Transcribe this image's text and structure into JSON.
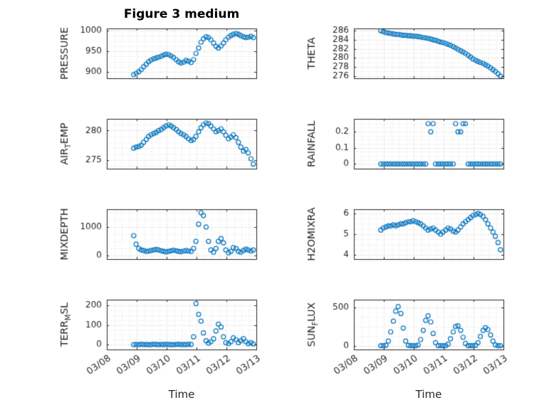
{
  "figure": {
    "title": "Figure 3 medium",
    "xlabel": "Time"
  },
  "colors": {
    "background": "#ffffff",
    "marker": "#0072BD",
    "axis": "#262626",
    "grid_major": "#c9c9c9",
    "grid_minor": "#e0e0e0"
  },
  "x_axis": {
    "label": "Time",
    "range": [
      0,
      5
    ],
    "ticks": [
      0,
      1,
      2,
      3,
      4,
      5
    ],
    "tick_labels": [
      "03/08",
      "03/09",
      "03/10",
      "03/11",
      "03/12",
      "03/13"
    ],
    "minor_step": 0.25
  },
  "time_days": [
    0.9,
    0.98,
    1.07,
    1.15,
    1.23,
    1.32,
    1.4,
    1.48,
    1.57,
    1.65,
    1.73,
    1.82,
    1.9,
    1.98,
    2.07,
    2.15,
    2.23,
    2.32,
    2.4,
    2.48,
    2.57,
    2.65,
    2.73,
    2.82,
    2.9,
    2.98,
    3.07,
    3.15,
    3.23,
    3.32,
    3.4,
    3.48,
    3.57,
    3.65,
    3.73,
    3.82,
    3.9,
    3.98,
    4.07,
    4.15,
    4.23,
    4.32,
    4.4,
    4.48,
    4.57,
    4.65,
    4.73,
    4.82,
    4.9
  ],
  "chart_data": [
    {
      "id": "pressure",
      "type": "scatter",
      "ylabel": [
        {
          "t": "PRESSURE"
        }
      ],
      "ylim": [
        885,
        1005
      ],
      "yticks": [
        900,
        950,
        1000
      ],
      "ytick_labels": [
        "900",
        "950",
        "1000"
      ],
      "y_minor_step": 12.5,
      "grid": true,
      "show_x_labels": false,
      "y": [
        894,
        897,
        901,
        906,
        913,
        919,
        925,
        929,
        932,
        934,
        936,
        938,
        941,
        943,
        942,
        939,
        935,
        930,
        925,
        922,
        924,
        928,
        926,
        923,
        930,
        945,
        958,
        972,
        980,
        985,
        983,
        978,
        970,
        962,
        958,
        963,
        970,
        978,
        984,
        988,
        991,
        993,
        991,
        988,
        985,
        983,
        984,
        986,
        983
      ]
    },
    {
      "id": "theta",
      "type": "scatter",
      "ylabel": [
        {
          "t": "THETA"
        }
      ],
      "ylim": [
        275.5,
        286.5
      ],
      "yticks": [
        276,
        278,
        280,
        282,
        284,
        286
      ],
      "ytick_labels": [
        "276",
        "278",
        "280",
        "282",
        "284",
        "286"
      ],
      "y_minor_step": 1,
      "grid": true,
      "show_x_labels": false,
      "y": [
        286.0,
        285.8,
        285.6,
        285.5,
        285.4,
        285.3,
        285.2,
        285.2,
        285.1,
        285.0,
        285.0,
        284.9,
        284.9,
        284.8,
        284.8,
        284.7,
        284.6,
        284.5,
        284.4,
        284.3,
        284.2,
        284.0,
        283.9,
        283.7,
        283.5,
        283.4,
        283.2,
        283.0,
        282.8,
        282.5,
        282.2,
        281.9,
        281.6,
        281.3,
        281.0,
        280.6,
        280.2,
        279.8,
        279.5,
        279.2,
        279.0,
        278.8,
        278.5,
        278.2,
        277.8,
        277.4,
        277.0,
        276.5,
        276.0
      ]
    },
    {
      "id": "airtemp",
      "type": "scatter",
      "ylabel": [
        {
          "t": "AIR"
        },
        {
          "t": "T",
          "sub": true
        },
        {
          "t": "EMP"
        }
      ],
      "ylim": [
        273.5,
        282.0
      ],
      "yticks": [
        275,
        280
      ],
      "ytick_labels": [
        "275",
        "280"
      ],
      "y_minor_step": 1,
      "grid": true,
      "show_x_labels": false,
      "y": [
        277.0,
        277.2,
        277.3,
        277.5,
        278.0,
        278.5,
        279.0,
        279.3,
        279.5,
        279.7,
        280.0,
        280.2,
        280.5,
        280.8,
        281.0,
        280.8,
        280.5,
        280.2,
        279.8,
        279.5,
        279.3,
        279.0,
        278.6,
        278.3,
        278.5,
        279.0,
        279.8,
        280.5,
        281.0,
        281.3,
        281.2,
        280.8,
        280.3,
        279.8,
        280.0,
        280.3,
        279.8,
        279.2,
        278.6,
        278.9,
        279.3,
        278.8,
        278.0,
        277.2,
        276.5,
        276.8,
        276.2,
        275.2,
        274.3
      ]
    },
    {
      "id": "rainfall",
      "type": "scatter",
      "ylabel": [
        {
          "t": "RAINFALL"
        }
      ],
      "ylim": [
        -0.03,
        0.28
      ],
      "yticks": [
        0,
        0.1,
        0.2
      ],
      "ytick_labels": [
        "0",
        "0.1",
        "0.2"
      ],
      "y_minor_step": 0.025,
      "grid": true,
      "show_x_labels": false,
      "y": [
        0,
        0,
        0,
        0,
        0,
        0,
        0,
        0,
        0,
        0,
        0,
        0,
        0,
        0,
        0,
        0,
        0,
        0,
        0,
        0.25,
        0.2,
        0.25,
        0,
        0,
        0,
        0,
        0,
        0,
        0,
        0,
        0.25,
        0.2,
        0.2,
        0.25,
        0.25,
        0,
        0,
        0,
        0,
        0,
        0,
        0,
        0,
        0,
        0,
        0,
        0,
        0,
        0
      ]
    },
    {
      "id": "mixdepth",
      "type": "scatter",
      "ylabel": [
        {
          "t": "MIXDEPTH"
        }
      ],
      "ylim": [
        -120,
        1620
      ],
      "yticks": [
        0,
        1000
      ],
      "ytick_labels": [
        "0",
        "1000"
      ],
      "y_minor_step": 250,
      "grid": true,
      "show_x_labels": false,
      "y": [
        700,
        400,
        250,
        200,
        180,
        150,
        160,
        180,
        200,
        220,
        200,
        170,
        150,
        130,
        150,
        170,
        190,
        170,
        150,
        140,
        160,
        180,
        160,
        150,
        250,
        500,
        1100,
        1500,
        1400,
        1000,
        500,
        200,
        120,
        250,
        500,
        600,
        450,
        200,
        100,
        150,
        280,
        250,
        150,
        120,
        180,
        230,
        200,
        160,
        200
      ]
    },
    {
      "id": "h2omixra",
      "type": "scatter",
      "ylabel": [
        {
          "t": "H2OMIXRA"
        }
      ],
      "ylim": [
        3.8,
        6.2
      ],
      "yticks": [
        4,
        5,
        6
      ],
      "ytick_labels": [
        "4",
        "5",
        "6"
      ],
      "y_minor_step": 0.25,
      "grid": true,
      "show_x_labels": false,
      "y": [
        5.2,
        5.3,
        5.35,
        5.4,
        5.4,
        5.45,
        5.4,
        5.45,
        5.5,
        5.5,
        5.55,
        5.6,
        5.6,
        5.65,
        5.6,
        5.55,
        5.5,
        5.4,
        5.3,
        5.2,
        5.25,
        5.3,
        5.2,
        5.1,
        5.0,
        5.1,
        5.2,
        5.3,
        5.25,
        5.15,
        5.1,
        5.2,
        5.35,
        5.5,
        5.6,
        5.7,
        5.8,
        5.9,
        5.95,
        6.0,
        5.95,
        5.85,
        5.7,
        5.5,
        5.3,
        5.1,
        4.9,
        4.6,
        4.25
      ]
    },
    {
      "id": "terrmsl",
      "type": "scatter",
      "ylabel": [
        {
          "t": "TERR"
        },
        {
          "t": "M",
          "sub": true
        },
        {
          "t": "SL"
        }
      ],
      "ylim": [
        -25,
        230
      ],
      "yticks": [
        0,
        100,
        200
      ],
      "ytick_labels": [
        "0",
        "100",
        "200"
      ],
      "y_minor_step": 25,
      "grid": true,
      "show_x_labels": true,
      "y": [
        0,
        1,
        0,
        2,
        0,
        1,
        0,
        0,
        2,
        1,
        0,
        1,
        0,
        2,
        1,
        0,
        0,
        1,
        2,
        0,
        1,
        0,
        2,
        1,
        40,
        210,
        155,
        120,
        60,
        20,
        8,
        15,
        30,
        70,
        105,
        90,
        40,
        10,
        5,
        15,
        35,
        25,
        10,
        20,
        30,
        15,
        5,
        10,
        3
      ]
    },
    {
      "id": "sunflux",
      "type": "scatter",
      "ylabel": [
        {
          "t": "SUN"
        },
        {
          "t": "F",
          "sub": true
        },
        {
          "t": "LUX"
        }
      ],
      "ylim": [
        -50,
        600
      ],
      "yticks": [
        0,
        500
      ],
      "ytick_labels": [
        "0",
        "500"
      ],
      "y_minor_step": 125,
      "grid": true,
      "show_x_labels": true,
      "y": [
        0,
        0,
        5,
        60,
        180,
        320,
        450,
        510,
        420,
        230,
        60,
        5,
        0,
        0,
        0,
        10,
        80,
        200,
        330,
        390,
        310,
        160,
        40,
        0,
        0,
        0,
        0,
        20,
        90,
        180,
        250,
        260,
        200,
        110,
        30,
        0,
        0,
        0,
        5,
        40,
        120,
        200,
        235,
        210,
        140,
        60,
        10,
        0,
        0
      ]
    }
  ]
}
